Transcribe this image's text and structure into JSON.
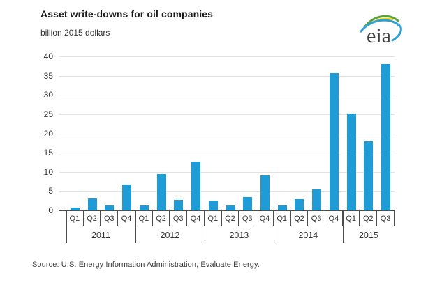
{
  "header": {
    "title": "Asset write-downs for oil companies",
    "subtitle": "billion 2015 dollars",
    "logo_text": "eia"
  },
  "chart_data": {
    "type": "bar",
    "title": "Asset write-downs for oil companies",
    "ylabel": "billion 2015 dollars",
    "ylim": [
      0,
      40
    ],
    "yticks": [
      0,
      5,
      10,
      15,
      20,
      25,
      30,
      35,
      40
    ],
    "grid": true,
    "legend": "none",
    "bar_color": "#1f9bd6",
    "groups": [
      {
        "year": "2011",
        "quarters": [
          "Q1",
          "Q2",
          "Q3",
          "Q4"
        ],
        "values": [
          0.8,
          3.0,
          1.2,
          6.7
        ]
      },
      {
        "year": "2012",
        "quarters": [
          "Q1",
          "Q2",
          "Q3",
          "Q4"
        ],
        "values": [
          1.3,
          9.4,
          2.8,
          12.6
        ]
      },
      {
        "year": "2013",
        "quarters": [
          "Q1",
          "Q2",
          "Q3",
          "Q4"
        ],
        "values": [
          2.5,
          1.2,
          3.4,
          9.0
        ]
      },
      {
        "year": "2014",
        "quarters": [
          "Q1",
          "Q2",
          "Q3",
          "Q4"
        ],
        "values": [
          1.2,
          2.9,
          5.4,
          35.6
        ]
      },
      {
        "year": "2015",
        "quarters": [
          "Q1",
          "Q2",
          "Q3"
        ],
        "values": [
          25.2,
          17.9,
          38.1
        ]
      }
    ],
    "colors": {
      "gridline": "#e2e2e2",
      "axis": "#4d4d4d",
      "text": "#333333"
    }
  },
  "footer": {
    "source": "Source:  U.S. Energy Information Administration, Evaluate Energy."
  }
}
